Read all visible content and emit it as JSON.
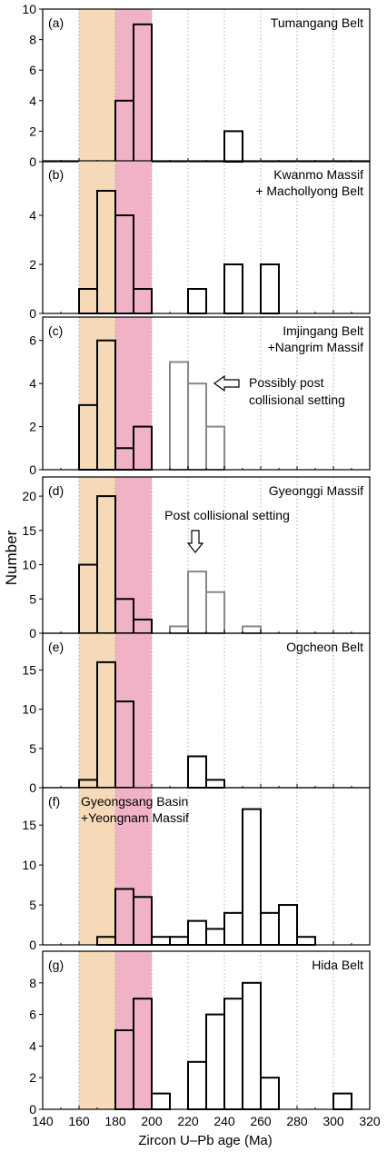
{
  "chart_data": {
    "type": "bar",
    "subtype": "stacked-histogram-panels",
    "xlabel": "Zircon U–Pb age (Ma)",
    "ylabel": "Number",
    "xlim": [
      140,
      320
    ],
    "xticks": [
      140,
      160,
      180,
      200,
      220,
      240,
      260,
      280,
      300,
      320
    ],
    "grid": "dotted vertical lines at each 20 Ma",
    "bin_width": 10,
    "shaded_ranges": [
      {
        "range": [
          160,
          180
        ],
        "color": "#f6d9b7"
      },
      {
        "range": [
          180,
          200
        ],
        "color": "#f2b2c6"
      }
    ],
    "colors": {
      "highlight_edge": "#000000",
      "faded_edge": "#888888"
    },
    "panels": [
      {
        "letter": "(a)",
        "title": [
          "Tumangang Belt"
        ],
        "ylim": [
          0,
          10
        ],
        "yticks": [
          0,
          2,
          4,
          6,
          8,
          10
        ],
        "bins": [
          {
            "x": 180,
            "y": 4
          },
          {
            "x": 190,
            "y": 9
          },
          {
            "x": 240,
            "y": 2
          }
        ]
      },
      {
        "letter": "(b)",
        "title": [
          "Kwanmo Massif",
          "+ Machollyong Belt"
        ],
        "ylim": [
          0,
          6
        ],
        "yticks": [
          0,
          2,
          4
        ],
        "bins": [
          {
            "x": 160,
            "y": 1
          },
          {
            "x": 170,
            "y": 5
          },
          {
            "x": 180,
            "y": 4
          },
          {
            "x": 190,
            "y": 1
          },
          {
            "x": 220,
            "y": 1
          },
          {
            "x": 240,
            "y": 2
          },
          {
            "x": 260,
            "y": 2
          }
        ]
      },
      {
        "letter": "(c)",
        "title": [
          "Imjingang Belt",
          "+Nangrim Massif"
        ],
        "ylim": [
          0,
          7
        ],
        "yticks": [
          0,
          2,
          4,
          6
        ],
        "bins": [
          {
            "x": 160,
            "y": 3
          },
          {
            "x": 170,
            "y": 6
          },
          {
            "x": 180,
            "y": 1
          },
          {
            "x": 190,
            "y": 2
          },
          {
            "x": 210,
            "y": 5,
            "faded": true
          },
          {
            "x": 220,
            "y": 4,
            "faded": true
          },
          {
            "x": 230,
            "y": 2,
            "faded": true
          }
        ],
        "annotation": {
          "lines": [
            "Possibly post",
            "collisional setting"
          ],
          "arrow_points_to": [
            225,
            4
          ],
          "arrow_direction": "left"
        }
      },
      {
        "letter": "(d)",
        "title": [
          "Gyeonggi Massif"
        ],
        "ylim": [
          0,
          22
        ],
        "yticks": [
          0,
          5,
          10,
          15,
          20
        ],
        "bins": [
          {
            "x": 160,
            "y": 10
          },
          {
            "x": 170,
            "y": 20
          },
          {
            "x": 180,
            "y": 5
          },
          {
            "x": 190,
            "y": 2
          },
          {
            "x": 210,
            "y": 1,
            "faded": true
          },
          {
            "x": 220,
            "y": 9,
            "faded": true
          },
          {
            "x": 230,
            "y": 6,
            "faded": true
          },
          {
            "x": 250,
            "y": 1,
            "faded": true
          }
        ],
        "annotation": {
          "lines": [
            "Post collisional setting"
          ],
          "arrow_points_to": [
            223,
            11
          ],
          "arrow_direction": "down"
        }
      },
      {
        "letter": "(e)",
        "title": [
          "Ogcheon Belt"
        ],
        "ylim": [
          0,
          19
        ],
        "yticks": [
          0,
          5,
          10,
          15
        ],
        "bins": [
          {
            "x": 160,
            "y": 1
          },
          {
            "x": 170,
            "y": 16
          },
          {
            "x": 180,
            "y": 11
          },
          {
            "x": 220,
            "y": 4
          },
          {
            "x": 230,
            "y": 1
          }
        ]
      },
      {
        "letter": "(f)",
        "title": [
          "Gyeongsang Basin",
          "+Yeongnam Massif"
        ],
        "ylim": [
          0,
          19
        ],
        "yticks": [
          0,
          5,
          10,
          15
        ],
        "bins": [
          {
            "x": 170,
            "y": 1
          },
          {
            "x": 180,
            "y": 7
          },
          {
            "x": 190,
            "y": 6
          },
          {
            "x": 200,
            "y": 1
          },
          {
            "x": 210,
            "y": 1
          },
          {
            "x": 220,
            "y": 3
          },
          {
            "x": 230,
            "y": 2
          },
          {
            "x": 240,
            "y": 4
          },
          {
            "x": 250,
            "y": 17
          },
          {
            "x": 260,
            "y": 4
          },
          {
            "x": 270,
            "y": 5
          },
          {
            "x": 280,
            "y": 1
          }
        ]
      },
      {
        "letter": "(g)",
        "title": [
          "Hida Belt"
        ],
        "ylim": [
          0,
          10
        ],
        "yticks": [
          0,
          2,
          4,
          6,
          8
        ],
        "bins": [
          {
            "x": 180,
            "y": 5
          },
          {
            "x": 190,
            "y": 7
          },
          {
            "x": 200,
            "y": 1
          },
          {
            "x": 220,
            "y": 3
          },
          {
            "x": 230,
            "y": 6
          },
          {
            "x": 240,
            "y": 7
          },
          {
            "x": 250,
            "y": 8
          },
          {
            "x": 260,
            "y": 2
          },
          {
            "x": 300,
            "y": 1
          }
        ]
      }
    ]
  }
}
